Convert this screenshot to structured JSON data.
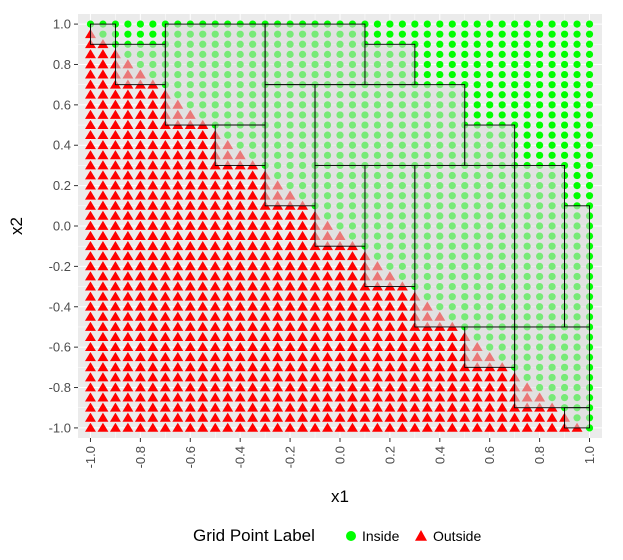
{
  "chart_data": {
    "type": "scatter",
    "title": "",
    "xlabel": "x1",
    "ylabel": "x2",
    "xlim": [
      -1.05,
      1.05
    ],
    "ylim": [
      -1.05,
      1.05
    ],
    "x_ticks": [
      "-1.0",
      "-0.8",
      "-0.6",
      "-0.4",
      "-0.2",
      "0.0",
      "0.2",
      "0.4",
      "0.6",
      "0.8",
      "1.0"
    ],
    "x_tick_values": [
      -1.0,
      -0.8,
      -0.6,
      -0.4,
      -0.2,
      0.0,
      0.2,
      0.4,
      0.6,
      0.8,
      1.0
    ],
    "y_ticks": [
      "1.0",
      "0.8",
      "0.6",
      "0.4",
      "0.2",
      "0.0",
      "-0.2",
      "-0.4",
      "-0.6",
      "-0.8",
      "-1.0"
    ],
    "y_tick_values": [
      1.0,
      0.8,
      0.6,
      0.4,
      0.2,
      0.0,
      -0.2,
      -0.4,
      -0.6,
      -0.8,
      -1.0
    ],
    "grid": true,
    "grid_points": {
      "x_range": [
        -1.0,
        1.0
      ],
      "y_range": [
        -1.0,
        1.0
      ],
      "step": 0.05,
      "rule": "inside if x1 + x2 >= 0, otherwise outside"
    },
    "series": [
      {
        "name": "Inside",
        "marker": "circle",
        "color": "#00ff00"
      },
      {
        "name": "Outside",
        "marker": "triangle",
        "color": "#ff0000"
      }
    ],
    "boxes": [
      {
        "x": [
          -1.0,
          -0.9
        ],
        "y": [
          0.9,
          1.0
        ]
      },
      {
        "x": [
          -0.9,
          -0.7
        ],
        "y": [
          0.7,
          0.9
        ]
      },
      {
        "x": [
          -0.7,
          -0.3
        ],
        "y": [
          0.5,
          1.0
        ]
      },
      {
        "x": [
          -0.5,
          -0.3
        ],
        "y": [
          0.3,
          0.5
        ]
      },
      {
        "x": [
          -0.3,
          0.1
        ],
        "y": [
          0.7,
          1.0
        ]
      },
      {
        "x": [
          0.1,
          0.3
        ],
        "y": [
          0.7,
          0.9
        ]
      },
      {
        "x": [
          -0.3,
          -0.1
        ],
        "y": [
          0.1,
          0.7
        ]
      },
      {
        "x": [
          -0.1,
          0.5
        ],
        "y": [
          0.3,
          0.7
        ]
      },
      {
        "x": [
          0.5,
          0.7
        ],
        "y": [
          0.3,
          0.5
        ]
      },
      {
        "x": [
          -0.1,
          0.1
        ],
        "y": [
          -0.1,
          0.3
        ]
      },
      {
        "x": [
          0.1,
          0.3
        ],
        "y": [
          -0.3,
          0.3
        ]
      },
      {
        "x": [
          0.3,
          0.7
        ],
        "y": [
          -0.5,
          0.3
        ]
      },
      {
        "x": [
          0.7,
          0.9
        ],
        "y": [
          -0.5,
          0.3
        ]
      },
      {
        "x": [
          0.9,
          1.0
        ],
        "y": [
          -0.5,
          0.1
        ]
      },
      {
        "x": [
          0.5,
          0.7
        ],
        "y": [
          -0.7,
          -0.5
        ]
      },
      {
        "x": [
          0.7,
          1.0
        ],
        "y": [
          -0.9,
          -0.5
        ]
      },
      {
        "x": [
          0.9,
          1.0
        ],
        "y": [
          -1.0,
          -0.9
        ]
      }
    ],
    "box_style": {
      "fill": "#d9d9d9",
      "stroke": "#000000"
    },
    "legend": {
      "title": "Grid Point Label",
      "position": "bottom",
      "items": [
        {
          "label": "Inside",
          "marker": "circle",
          "color": "#00ff00"
        },
        {
          "label": "Outside",
          "marker": "triangle",
          "color": "#ff0000"
        }
      ]
    },
    "panel_background": "#ebebeb",
    "gridline_color": "#ffffff"
  }
}
